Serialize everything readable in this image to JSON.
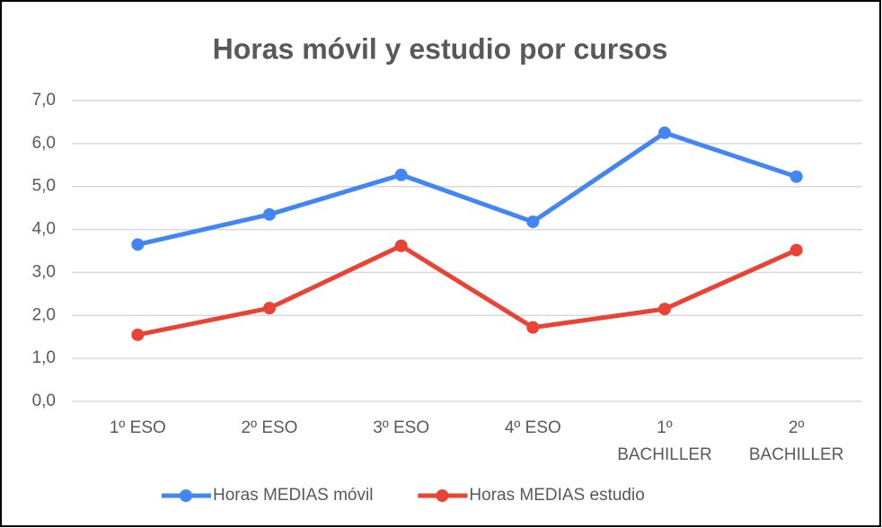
{
  "chart_data": {
    "type": "line",
    "title": "Horas móvil y estudio por cursos",
    "categories": [
      "1º ESO",
      "2º ESO",
      "3º ESO",
      "4º ESO",
      "1º BACHILLER",
      "2º BACHILLER"
    ],
    "series": [
      {
        "name": "Horas MEDIAS móvil",
        "color": "#4285f4",
        "values": [
          3.65,
          4.35,
          5.27,
          4.18,
          6.25,
          5.23
        ]
      },
      {
        "name": "Horas MEDIAS estudio",
        "color": "#ea4335",
        "values": [
          1.55,
          2.17,
          3.62,
          1.72,
          2.15,
          3.52
        ]
      }
    ],
    "ylim": [
      0,
      7
    ],
    "yticks": [
      {
        "value": 0,
        "label": "0,0"
      },
      {
        "value": 1,
        "label": "1,0"
      },
      {
        "value": 2,
        "label": "2,0"
      },
      {
        "value": 3,
        "label": "3,0"
      },
      {
        "value": 4,
        "label": "4,0"
      },
      {
        "value": 5,
        "label": "5,0"
      },
      {
        "value": 6,
        "label": "6,0"
      },
      {
        "value": 7,
        "label": "7,0"
      }
    ],
    "grid": true,
    "legend": "bottom"
  }
}
